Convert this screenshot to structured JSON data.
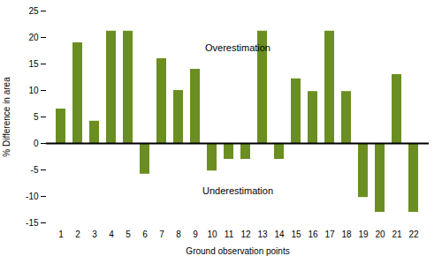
{
  "chart_data": {
    "type": "bar",
    "categories": [
      1,
      2,
      3,
      4,
      5,
      6,
      7,
      8,
      9,
      10,
      11,
      12,
      13,
      14,
      15,
      16,
      17,
      18,
      19,
      20,
      21,
      22
    ],
    "values": [
      6.5,
      19.0,
      4.2,
      21.2,
      21.2,
      -5.8,
      16.0,
      10.0,
      14.0,
      -5.2,
      -3.0,
      -3.0,
      21.2,
      -3.0,
      12.2,
      9.8,
      21.2,
      9.8,
      -10.2,
      -13.0,
      13.0,
      -13.0
    ],
    "color": "#6b8e23",
    "xlabel": "Ground observation points",
    "ylabel": "% Difference in area",
    "ylim": [
      -15,
      25
    ],
    "yticks": [
      -15,
      -10,
      -5,
      0,
      5,
      10,
      15,
      20,
      25
    ],
    "annotations": [
      {
        "text": "Overestimation",
        "y": 18
      },
      {
        "text": "Underestimation",
        "y": -9.0
      }
    ]
  }
}
